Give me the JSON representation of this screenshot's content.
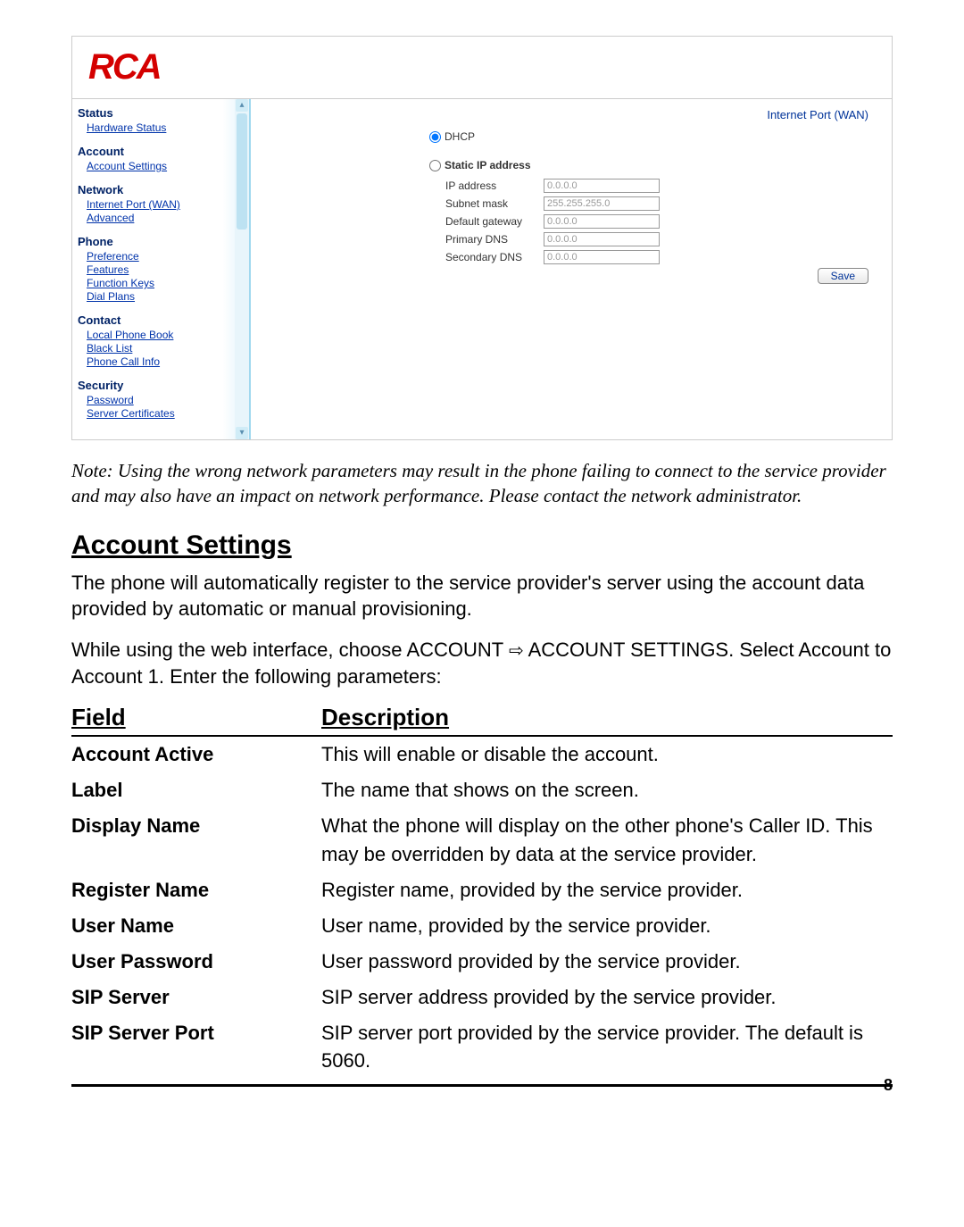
{
  "logo": "RCA",
  "sidebar": {
    "sections": [
      {
        "title": "Status",
        "links": [
          "Hardware Status"
        ]
      },
      {
        "title": "Account",
        "links": [
          "Account Settings"
        ]
      },
      {
        "title": "Network",
        "links": [
          "Internet Port (WAN)",
          "Advanced"
        ]
      },
      {
        "title": "Phone",
        "links": [
          "Preference",
          "Features",
          "Function Keys",
          "Dial Plans"
        ]
      },
      {
        "title": "Contact",
        "links": [
          "Local Phone Book",
          "Black List",
          "Phone Call Info"
        ]
      },
      {
        "title": "Security",
        "links": [
          "Password",
          "Server Certificates"
        ]
      }
    ]
  },
  "content": {
    "title": "Internet Port (WAN)",
    "dhcp_label": "DHCP",
    "static_label": "Static IP address",
    "fields": [
      {
        "label": "IP address",
        "value": "0.0.0.0"
      },
      {
        "label": "Subnet mask",
        "value": "255.255.255.0"
      },
      {
        "label": "Default gateway",
        "value": "0.0.0.0"
      },
      {
        "label": "Primary DNS",
        "value": "0.0.0.0"
      },
      {
        "label": "Secondary DNS",
        "value": "0.0.0.0"
      }
    ],
    "save": "Save"
  },
  "doc": {
    "note": "Note: Using the wrong network parameters may result in the phone failing to connect to the service provider and may also have an impact on network performance. Please contact the network administrator.",
    "section_title": "Account Settings",
    "p1": "The phone will automatically register to the service provider's server using the account data provided by automatic or manual provisioning.",
    "p2a": "While using the web interface, choose  ACCOUNT ",
    "p2b": " ACCOUNT SETTINGS. Select Account to Account 1. Enter the following parameters:",
    "table_headers": {
      "field": "Field",
      "desc": "Description"
    },
    "rows": [
      {
        "field": "Account Active",
        "desc": "This will enable or disable the account."
      },
      {
        "field": "Label",
        "desc": "The name that shows on the screen."
      },
      {
        "field": "Display Name",
        "desc": "What the phone will display on the other phone's Caller ID. This may be overridden by data at the service provider."
      },
      {
        "field": "Register Name",
        "desc": "Register name, provided by the service provider."
      },
      {
        "field": "User Name",
        "desc": "User name, provided by the service provider."
      },
      {
        "field": "User Password",
        "desc": "User password provided by the service provider."
      },
      {
        "field": "SIP Server",
        "desc": "SIP server address provided by the service provider."
      },
      {
        "field": "SIP Server Port",
        "desc": "SIP server port provided by the service provider. The default is 5060."
      }
    ],
    "page_num": "8"
  }
}
